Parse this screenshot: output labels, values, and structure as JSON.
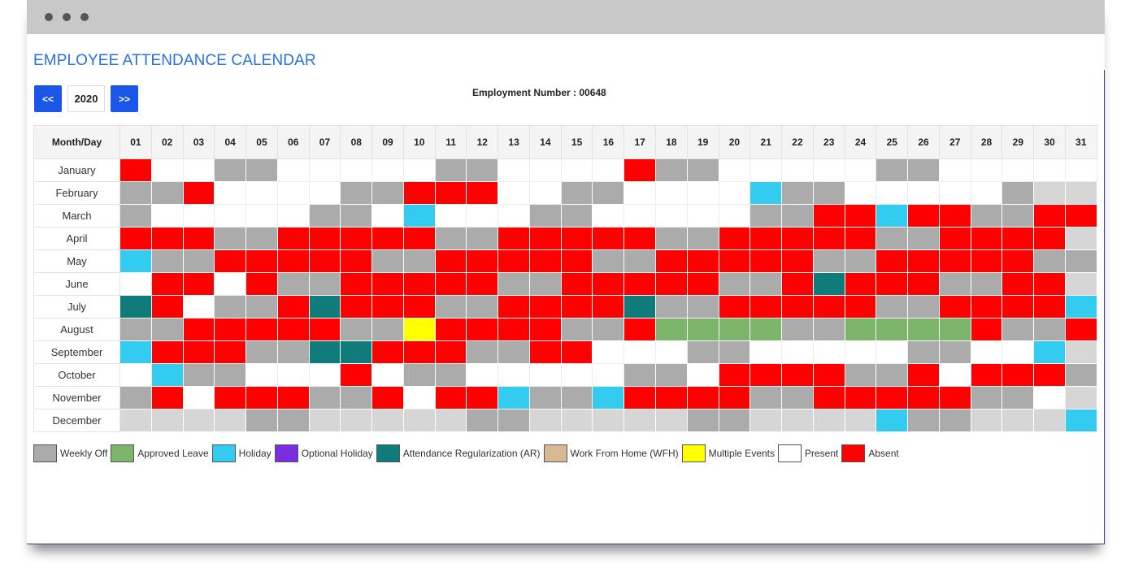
{
  "page_title": "EMPLOYEE ATTENDANCE CALENDAR",
  "nav": {
    "prev_label": "<<",
    "year": "2020",
    "next_label": ">>"
  },
  "employment_number": "Employment Number : 00648",
  "table": {
    "header_label": "Month/Day",
    "days": [
      "01",
      "02",
      "03",
      "04",
      "05",
      "06",
      "07",
      "08",
      "09",
      "10",
      "11",
      "12",
      "13",
      "14",
      "15",
      "16",
      "17",
      "18",
      "19",
      "20",
      "21",
      "22",
      "23",
      "24",
      "25",
      "26",
      "27",
      "28",
      "29",
      "30",
      "31"
    ],
    "months": [
      {
        "name": "January",
        "status": [
          "A",
          "P",
          "P",
          "W",
          "W",
          "P",
          "P",
          "P",
          "P",
          "P",
          "W",
          "W",
          "P",
          "P",
          "P",
          "P",
          "A",
          "W",
          "W",
          "P",
          "P",
          "P",
          "P",
          "P",
          "W",
          "W",
          "P",
          "P",
          "P",
          "P",
          "P"
        ]
      },
      {
        "name": "February",
        "status": [
          "W",
          "W",
          "A",
          "P",
          "P",
          "P",
          "P",
          "W",
          "W",
          "A",
          "A",
          "A",
          "P",
          "P",
          "W",
          "W",
          "P",
          "P",
          "P",
          "P",
          "H",
          "W",
          "W",
          "P",
          "P",
          "P",
          "P",
          "P",
          "W",
          "X",
          "X"
        ]
      },
      {
        "name": "March",
        "status": [
          "W",
          "P",
          "P",
          "P",
          "P",
          "P",
          "W",
          "W",
          "P",
          "H",
          "P",
          "P",
          "P",
          "W",
          "W",
          "P",
          "P",
          "P",
          "P",
          "P",
          "W",
          "W",
          "A",
          "A",
          "H",
          "A",
          "A",
          "W",
          "W",
          "A",
          "A"
        ]
      },
      {
        "name": "April",
        "status": [
          "A",
          "A",
          "A",
          "W",
          "W",
          "A",
          "A",
          "A",
          "A",
          "A",
          "W",
          "W",
          "A",
          "A",
          "A",
          "A",
          "A",
          "W",
          "W",
          "A",
          "A",
          "A",
          "A",
          "A",
          "W",
          "W",
          "A",
          "A",
          "A",
          "A",
          "X"
        ]
      },
      {
        "name": "May",
        "status": [
          "H",
          "W",
          "W",
          "A",
          "A",
          "A",
          "A",
          "A",
          "W",
          "W",
          "A",
          "A",
          "A",
          "A",
          "A",
          "W",
          "W",
          "A",
          "A",
          "A",
          "A",
          "A",
          "W",
          "W",
          "A",
          "A",
          "A",
          "A",
          "A",
          "W",
          "W"
        ]
      },
      {
        "name": "June",
        "status": [
          "P",
          "A",
          "A",
          "P",
          "A",
          "W",
          "W",
          "A",
          "A",
          "A",
          "A",
          "A",
          "W",
          "W",
          "A",
          "A",
          "A",
          "A",
          "A",
          "W",
          "W",
          "A",
          "R",
          "A",
          "A",
          "A",
          "W",
          "W",
          "A",
          "A",
          "X"
        ]
      },
      {
        "name": "July",
        "status": [
          "R",
          "A",
          "P",
          "W",
          "W",
          "A",
          "R",
          "A",
          "A",
          "A",
          "W",
          "W",
          "A",
          "A",
          "A",
          "A",
          "R",
          "W",
          "W",
          "A",
          "A",
          "A",
          "A",
          "A",
          "W",
          "W",
          "A",
          "A",
          "A",
          "A",
          "H"
        ]
      },
      {
        "name": "August",
        "status": [
          "W",
          "W",
          "A",
          "A",
          "A",
          "A",
          "A",
          "W",
          "W",
          "M",
          "A",
          "A",
          "A",
          "A",
          "W",
          "W",
          "A",
          "L",
          "L",
          "L",
          "L",
          "W",
          "W",
          "L",
          "L",
          "L",
          "L",
          "A",
          "W",
          "W",
          "A"
        ]
      },
      {
        "name": "September",
        "status": [
          "H",
          "A",
          "A",
          "A",
          "W",
          "W",
          "R",
          "R",
          "A",
          "A",
          "A",
          "W",
          "W",
          "A",
          "A",
          "P",
          "P",
          "P",
          "W",
          "W",
          "P",
          "P",
          "P",
          "P",
          "P",
          "W",
          "W",
          "P",
          "P",
          "H",
          "X"
        ]
      },
      {
        "name": "October",
        "status": [
          "P",
          "H",
          "W",
          "W",
          "P",
          "P",
          "P",
          "A",
          "P",
          "W",
          "W",
          "P",
          "P",
          "P",
          "P",
          "P",
          "W",
          "W",
          "P",
          "A",
          "A",
          "A",
          "A",
          "W",
          "W",
          "A",
          "P",
          "A",
          "A",
          "A",
          "W"
        ]
      },
      {
        "name": "November",
        "status": [
          "W",
          "A",
          "P",
          "A",
          "A",
          "A",
          "W",
          "W",
          "A",
          "P",
          "A",
          "A",
          "H",
          "W",
          "W",
          "H",
          "A",
          "A",
          "A",
          "A",
          "W",
          "W",
          "A",
          "A",
          "A",
          "A",
          "A",
          "W",
          "W",
          "P",
          "X"
        ]
      },
      {
        "name": "December",
        "status": [
          "X",
          "X",
          "X",
          "X",
          "W",
          "W",
          "X",
          "X",
          "X",
          "X",
          "X",
          "W",
          "W",
          "X",
          "X",
          "X",
          "X",
          "X",
          "W",
          "W",
          "X",
          "X",
          "X",
          "X",
          "H",
          "W",
          "W",
          "X",
          "X",
          "X",
          "H"
        ]
      }
    ]
  },
  "status_colors": {
    "W": "#ababab",
    "L": "#7cb46a",
    "H": "#33ccf0",
    "O": "#7b2ee0",
    "R": "#0f7b7b",
    "F": "#d8b893",
    "M": "#ffff00",
    "P": "#ffffff",
    "A": "#ff0000",
    "X": "#d6d6d6"
  },
  "legend": [
    {
      "label": "Weekly Off",
      "color": "#ababab"
    },
    {
      "label": "Approved Leave",
      "color": "#7cb46a"
    },
    {
      "label": "Holiday",
      "color": "#33ccf0"
    },
    {
      "label": "Optional Holiday",
      "color": "#7b2ee0"
    },
    {
      "label": "Attendance Regularization (AR)",
      "color": "#0f7b7b"
    },
    {
      "label": "Work From Home (WFH)",
      "color": "#d8b893"
    },
    {
      "label": "Multiple Events",
      "color": "#ffff00"
    },
    {
      "label": "Present",
      "color": "#ffffff"
    },
    {
      "label": "Absent",
      "color": "#ff0000"
    }
  ]
}
